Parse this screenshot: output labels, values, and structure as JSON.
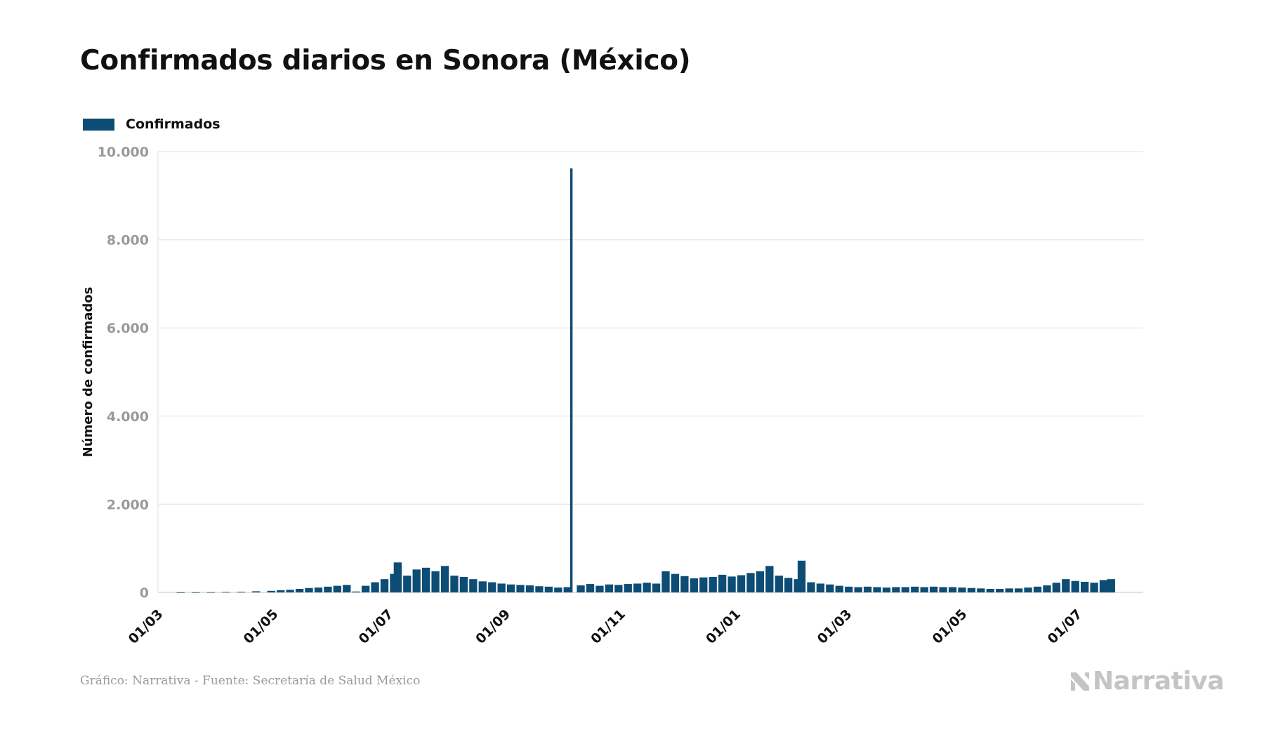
{
  "title": "Confirmados diarios en Sonora (México)",
  "footer": "Gráfico: Narrativa - Fuente: Secretaría de Salud México",
  "logo": {
    "text": "Narrativa",
    "icon": "narrativa-n-icon",
    "color": "#c4c4c4"
  },
  "colors": {
    "bar": "#0d4c74",
    "grid": "#e6e6e6",
    "tick": "#9a9a9a",
    "axis_title": "#111111"
  },
  "chart_data": {
    "type": "bar",
    "legend": {
      "position": "top-left",
      "entries": [
        "Confirmados"
      ]
    },
    "ylabel": "Número de confirmados",
    "xlabel": "",
    "ylim": [
      0,
      10000
    ],
    "yticks": [
      0,
      2000,
      4000,
      6000,
      8000,
      10000
    ],
    "ytick_labels": [
      "0",
      "2.000",
      "4.000",
      "6.000",
      "8.000",
      "10.000"
    ],
    "grid": true,
    "x_start": "2020-03-01",
    "x_end": "2021-08-05",
    "xtick_dates": [
      "2020-03-01",
      "2020-05-01",
      "2020-07-01",
      "2020-09-01",
      "2020-11-01",
      "2021-01-01",
      "2021-03-01",
      "2021-05-01",
      "2021-07-01"
    ],
    "xtick_labels": [
      "01/03",
      "01/05",
      "01/07",
      "01/09",
      "01/11",
      "01/01",
      "01/03",
      "01/05",
      "01/07"
    ],
    "series": [
      {
        "name": "Confirmados",
        "points": [
          [
            "2020-03-13",
            2
          ],
          [
            "2020-03-21",
            3
          ],
          [
            "2020-03-29",
            5
          ],
          [
            "2020-04-06",
            10
          ],
          [
            "2020-04-14",
            15
          ],
          [
            "2020-04-22",
            25
          ],
          [
            "2020-04-30",
            35
          ],
          [
            "2020-05-05",
            50
          ],
          [
            "2020-05-10",
            60
          ],
          [
            "2020-05-15",
            80
          ],
          [
            "2020-05-20",
            100
          ],
          [
            "2020-05-25",
            110
          ],
          [
            "2020-05-30",
            130
          ],
          [
            "2020-06-04",
            150
          ],
          [
            "2020-06-09",
            170
          ],
          [
            "2020-06-14",
            20
          ],
          [
            "2020-06-19",
            150
          ],
          [
            "2020-06-24",
            230
          ],
          [
            "2020-06-29",
            300
          ],
          [
            "2020-07-04",
            420
          ],
          [
            "2020-07-06",
            680
          ],
          [
            "2020-07-11",
            380
          ],
          [
            "2020-07-16",
            520
          ],
          [
            "2020-07-21",
            560
          ],
          [
            "2020-07-26",
            480
          ],
          [
            "2020-07-31",
            600
          ],
          [
            "2020-08-05",
            380
          ],
          [
            "2020-08-10",
            350
          ],
          [
            "2020-08-15",
            300
          ],
          [
            "2020-08-20",
            250
          ],
          [
            "2020-08-25",
            230
          ],
          [
            "2020-08-30",
            200
          ],
          [
            "2020-09-04",
            180
          ],
          [
            "2020-09-09",
            170
          ],
          [
            "2020-09-14",
            160
          ],
          [
            "2020-09-19",
            140
          ],
          [
            "2020-09-24",
            130
          ],
          [
            "2020-09-29",
            110
          ],
          [
            "2020-10-04",
            120
          ],
          [
            "2020-10-06",
            9620
          ],
          [
            "2020-10-11",
            160
          ],
          [
            "2020-10-16",
            190
          ],
          [
            "2020-10-21",
            150
          ],
          [
            "2020-10-26",
            180
          ],
          [
            "2020-10-31",
            170
          ],
          [
            "2020-11-05",
            190
          ],
          [
            "2020-11-10",
            200
          ],
          [
            "2020-11-15",
            220
          ],
          [
            "2020-11-20",
            200
          ],
          [
            "2020-11-25",
            480
          ],
          [
            "2020-11-30",
            420
          ],
          [
            "2020-12-05",
            370
          ],
          [
            "2020-12-10",
            320
          ],
          [
            "2020-12-15",
            340
          ],
          [
            "2020-12-20",
            350
          ],
          [
            "2020-12-25",
            400
          ],
          [
            "2020-12-30",
            360
          ],
          [
            "2021-01-04",
            390
          ],
          [
            "2021-01-09",
            440
          ],
          [
            "2021-01-14",
            480
          ],
          [
            "2021-01-19",
            600
          ],
          [
            "2021-01-24",
            380
          ],
          [
            "2021-01-29",
            330
          ],
          [
            "2021-02-03",
            300
          ],
          [
            "2021-02-05",
            720
          ],
          [
            "2021-02-10",
            230
          ],
          [
            "2021-02-15",
            200
          ],
          [
            "2021-02-20",
            180
          ],
          [
            "2021-02-25",
            150
          ],
          [
            "2021-03-02",
            130
          ],
          [
            "2021-03-07",
            120
          ],
          [
            "2021-03-12",
            130
          ],
          [
            "2021-03-17",
            120
          ],
          [
            "2021-03-22",
            110
          ],
          [
            "2021-03-27",
            120
          ],
          [
            "2021-04-01",
            120
          ],
          [
            "2021-04-06",
            130
          ],
          [
            "2021-04-11",
            120
          ],
          [
            "2021-04-16",
            130
          ],
          [
            "2021-04-21",
            120
          ],
          [
            "2021-04-26",
            120
          ],
          [
            "2021-05-01",
            110
          ],
          [
            "2021-05-06",
            100
          ],
          [
            "2021-05-11",
            90
          ],
          [
            "2021-05-16",
            80
          ],
          [
            "2021-05-21",
            80
          ],
          [
            "2021-05-26",
            90
          ],
          [
            "2021-05-31",
            90
          ],
          [
            "2021-06-05",
            110
          ],
          [
            "2021-06-10",
            130
          ],
          [
            "2021-06-15",
            160
          ],
          [
            "2021-06-20",
            220
          ],
          [
            "2021-06-25",
            300
          ],
          [
            "2021-06-30",
            260
          ],
          [
            "2021-07-05",
            240
          ],
          [
            "2021-07-10",
            220
          ],
          [
            "2021-07-15",
            280
          ],
          [
            "2021-07-19",
            300
          ]
        ]
      }
    ]
  }
}
